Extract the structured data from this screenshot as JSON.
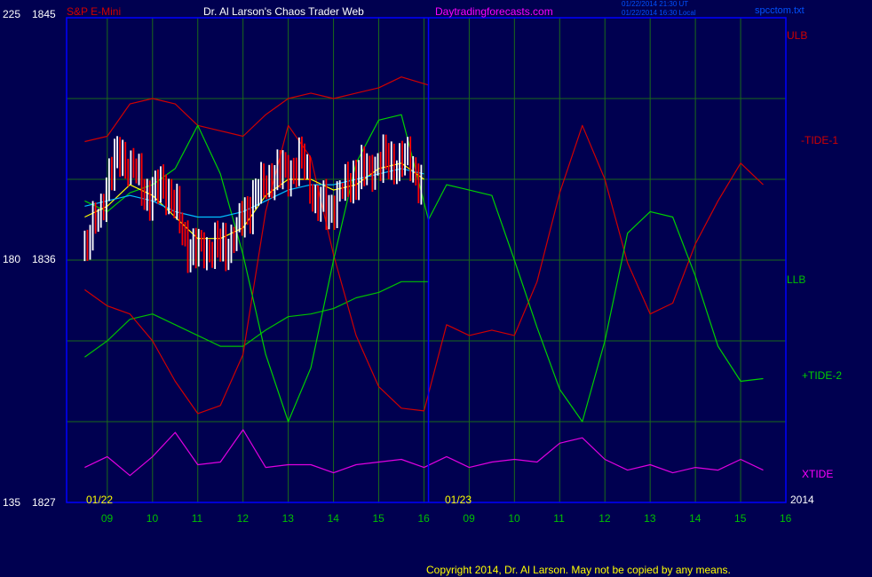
{
  "header": {
    "instrument": "S&P E-Mini",
    "title": "Dr. Al Larson's Chaos Trader Web",
    "site": "Daytradingforecasts.com",
    "stamp_line1": "01/22/2014 21:30 UT",
    "stamp_line2": "01/22/2014 16:30 Local",
    "filename": "spcctom.txt"
  },
  "left_axis": {
    "top_left": "225",
    "top_right": "1845",
    "mid_left": "180",
    "mid_right": "1836",
    "bot_left": "135",
    "bot_right": "1827"
  },
  "right_labels": {
    "ulb": "ULB",
    "tide1": "-TIDE-1",
    "llb": "LLB",
    "tide2": "+TIDE-2",
    "xtide": "XTIDE"
  },
  "dates": {
    "day1": "01/22",
    "day2": "01/23",
    "year": "2014"
  },
  "copyright": "Copyright 2014, Dr. Al Larson. May not be copied by any means.",
  "colors": {
    "background": "#000050",
    "frame": "#0000ff",
    "grid": "#1a6a1a",
    "ulb": "#d00000",
    "tide1": "#d00000",
    "llb": "#00c000",
    "tide2": "#00d000",
    "xtide": "#e000e0",
    "price_up": "#ffffff",
    "price_down": "#ff0000",
    "ma_fast": "#ffff00",
    "ma_slow": "#00c0ff",
    "site": "#ff00ff",
    "hours": "#00c000"
  },
  "chart_data": {
    "type": "line",
    "ylim_price": [
      1827,
      1845
    ],
    "ylim_scale": [
      135,
      225
    ],
    "x_hours": [
      "09",
      "10",
      "11",
      "12",
      "13",
      "14",
      "15",
      "16",
      "09",
      "10",
      "11",
      "12",
      "13",
      "14",
      "15",
      "16"
    ],
    "series": [
      {
        "name": "ULB",
        "points": [
          [
            8.5,
            1840.4
          ],
          [
            9,
            1840.6
          ],
          [
            9.5,
            1841.8
          ],
          [
            10,
            1842.0
          ],
          [
            10.5,
            1841.8
          ],
          [
            11,
            1841.0
          ],
          [
            11.5,
            1840.8
          ],
          [
            12,
            1840.6
          ],
          [
            12.5,
            1841.4
          ],
          [
            13,
            1842.0
          ],
          [
            13.5,
            1842.2
          ],
          [
            14,
            1842.0
          ],
          [
            14.5,
            1842.2
          ],
          [
            15,
            1842.4
          ],
          [
            15.5,
            1842.8
          ],
          [
            16.1,
            1842.5
          ]
        ]
      },
      {
        "name": "LLB",
        "points": [
          [
            8.5,
            1832.4
          ],
          [
            9,
            1833.0
          ],
          [
            9.5,
            1833.8
          ],
          [
            10,
            1834.0
          ],
          [
            10.5,
            1833.6
          ],
          [
            11,
            1833.2
          ],
          [
            11.5,
            1832.8
          ],
          [
            12,
            1832.8
          ],
          [
            12.5,
            1833.4
          ],
          [
            13,
            1833.9
          ],
          [
            13.5,
            1834.0
          ],
          [
            14,
            1834.2
          ],
          [
            14.5,
            1834.6
          ],
          [
            15,
            1834.8
          ],
          [
            15.5,
            1835.2
          ],
          [
            16.1,
            1835.2
          ]
        ]
      },
      {
        "name": "-TIDE-1",
        "points": [
          [
            8.5,
            1834.9
          ],
          [
            9,
            1834.3
          ],
          [
            9.5,
            1834.0
          ],
          [
            10,
            1833.0
          ],
          [
            10.5,
            1831.5
          ],
          [
            11,
            1830.3
          ],
          [
            11.5,
            1830.6
          ],
          [
            12,
            1832.5
          ],
          [
            12.5,
            1837.8
          ],
          [
            13,
            1841.0
          ],
          [
            13.5,
            1839.8
          ],
          [
            14,
            1836.2
          ],
          [
            14.5,
            1833.2
          ],
          [
            15,
            1831.3
          ],
          [
            15.5,
            1830.5
          ],
          [
            16,
            1830.4
          ],
          [
            16.5,
            1833.6
          ],
          [
            17,
            1833.2
          ],
          [
            17.5,
            1833.4
          ],
          [
            18,
            1833.2
          ],
          [
            18.5,
            1835.2
          ],
          [
            19,
            1838.5
          ],
          [
            19.5,
            1841.0
          ],
          [
            20,
            1839.0
          ],
          [
            20.5,
            1835.9
          ],
          [
            21,
            1834.0
          ],
          [
            21.5,
            1834.4
          ],
          [
            22,
            1836.6
          ],
          [
            22.5,
            1838.2
          ],
          [
            23,
            1839.6
          ],
          [
            23.5,
            1838.8
          ]
        ]
      },
      {
        "name": "+TIDE-2",
        "points": [
          [
            8.5,
            1838.2
          ],
          [
            9,
            1837.8
          ],
          [
            9.5,
            1838.5
          ],
          [
            10,
            1838.8
          ],
          [
            10.5,
            1839.4
          ],
          [
            11,
            1841.0
          ],
          [
            11.5,
            1839.2
          ],
          [
            12,
            1836.2
          ],
          [
            12.5,
            1832.5
          ],
          [
            13,
            1830.0
          ],
          [
            13.5,
            1832.0
          ],
          [
            14,
            1836.0
          ],
          [
            14.5,
            1839.6
          ],
          [
            15,
            1841.2
          ],
          [
            15.5,
            1841.4
          ],
          [
            16.1,
            1837.5
          ],
          [
            16.5,
            1838.8
          ],
          [
            17,
            1838.6
          ],
          [
            17.5,
            1838.4
          ],
          [
            18,
            1836.0
          ],
          [
            18.5,
            1833.5
          ],
          [
            19,
            1831.2
          ],
          [
            19.5,
            1830.0
          ],
          [
            20,
            1833.0
          ],
          [
            20.5,
            1837.0
          ],
          [
            21,
            1837.8
          ],
          [
            21.5,
            1837.6
          ],
          [
            22,
            1835.4
          ],
          [
            22.5,
            1832.8
          ],
          [
            23,
            1831.5
          ],
          [
            23.5,
            1831.6
          ]
        ]
      },
      {
        "name": "XTIDE",
        "points": [
          [
            8.5,
            1828.3
          ],
          [
            9,
            1828.7
          ],
          [
            9.5,
            1828.0
          ],
          [
            10,
            1828.7
          ],
          [
            10.5,
            1829.6
          ],
          [
            11,
            1828.4
          ],
          [
            11.5,
            1828.5
          ],
          [
            12,
            1829.7
          ],
          [
            12.5,
            1828.3
          ],
          [
            13,
            1828.4
          ],
          [
            13.5,
            1828.4
          ],
          [
            14,
            1828.1
          ],
          [
            14.5,
            1828.4
          ],
          [
            15,
            1828.5
          ],
          [
            15.5,
            1828.6
          ],
          [
            16,
            1828.3
          ],
          [
            16.5,
            1828.7
          ],
          [
            17,
            1828.3
          ],
          [
            17.5,
            1828.5
          ],
          [
            18,
            1828.6
          ],
          [
            18.5,
            1828.5
          ],
          [
            19,
            1829.2
          ],
          [
            19.5,
            1829.4
          ],
          [
            20,
            1828.6
          ],
          [
            20.5,
            1828.2
          ],
          [
            21,
            1828.4
          ],
          [
            21.5,
            1828.1
          ],
          [
            22,
            1828.3
          ],
          [
            22.5,
            1828.2
          ],
          [
            23,
            1828.6
          ],
          [
            23.5,
            1828.2
          ]
        ]
      },
      {
        "name": "Price",
        "points": [
          [
            8.5,
            1836.5
          ],
          [
            8.8,
            1837.5
          ],
          [
            9,
            1839.0
          ],
          [
            9.3,
            1840.0
          ],
          [
            9.6,
            1839.2
          ],
          [
            9.9,
            1838.4
          ],
          [
            10.2,
            1838.8
          ],
          [
            10.5,
            1838.0
          ],
          [
            10.8,
            1836.5
          ],
          [
            11,
            1836.2
          ],
          [
            11.3,
            1836.6
          ],
          [
            11.6,
            1836.4
          ],
          [
            12,
            1837.5
          ],
          [
            12.3,
            1838.6
          ],
          [
            12.6,
            1839.0
          ],
          [
            13,
            1839.4
          ],
          [
            13.3,
            1839.6
          ],
          [
            13.6,
            1838.3
          ],
          [
            13.9,
            1837.8
          ],
          [
            14.2,
            1838.6
          ],
          [
            14.5,
            1839.2
          ],
          [
            14.8,
            1839.4
          ],
          [
            15.1,
            1839.6
          ],
          [
            15.4,
            1839.8
          ],
          [
            15.7,
            1839.5
          ],
          [
            16,
            1838.8
          ]
        ]
      },
      {
        "name": "MA fast",
        "points": [
          [
            8.5,
            1837.6
          ],
          [
            9,
            1838.0
          ],
          [
            9.5,
            1838.8
          ],
          [
            10,
            1838.4
          ],
          [
            10.5,
            1837.6
          ],
          [
            11,
            1836.8
          ],
          [
            11.5,
            1836.8
          ],
          [
            12,
            1837.2
          ],
          [
            12.5,
            1838.4
          ],
          [
            13,
            1839.0
          ],
          [
            13.5,
            1839.0
          ],
          [
            14,
            1838.6
          ],
          [
            14.5,
            1838.8
          ],
          [
            15,
            1839.4
          ],
          [
            15.5,
            1839.6
          ],
          [
            16,
            1839.0
          ]
        ]
      },
      {
        "name": "MA slow",
        "points": [
          [
            8.5,
            1838.0
          ],
          [
            9,
            1838.2
          ],
          [
            9.5,
            1838.4
          ],
          [
            10,
            1838.2
          ],
          [
            10.5,
            1837.8
          ],
          [
            11,
            1837.6
          ],
          [
            11.5,
            1837.6
          ],
          [
            12,
            1837.8
          ],
          [
            12.5,
            1838.2
          ],
          [
            13,
            1838.6
          ],
          [
            13.5,
            1838.8
          ],
          [
            14,
            1838.8
          ],
          [
            14.5,
            1839.0
          ],
          [
            15,
            1839.2
          ],
          [
            15.5,
            1839.4
          ],
          [
            16,
            1839.2
          ]
        ]
      }
    ]
  }
}
